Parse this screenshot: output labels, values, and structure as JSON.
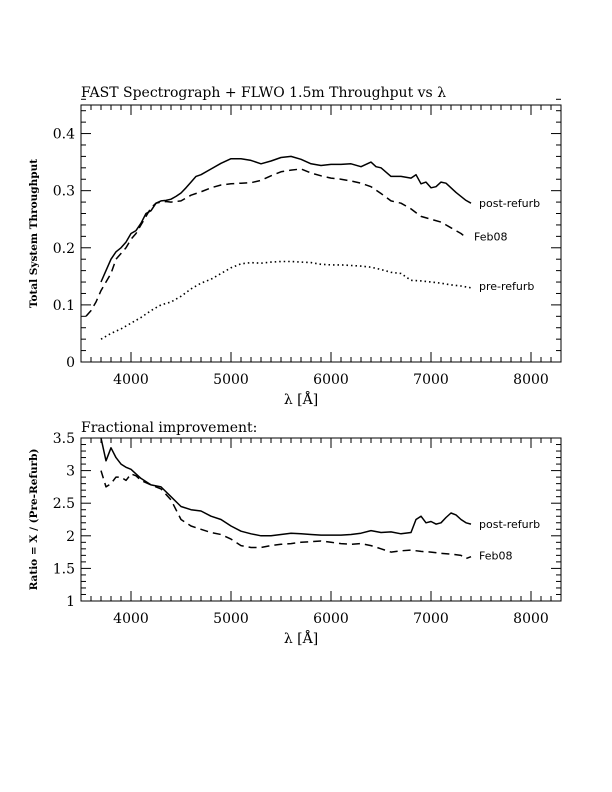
{
  "chart_data": [
    {
      "type": "line",
      "title": "FAST Spectrograph + FLWO 1.5m Throughput vs λ",
      "xlabel": "λ [Å]",
      "ylabel": "Total System Throughput",
      "xlim": [
        3500,
        8300
      ],
      "ylim": [
        0,
        0.45
      ],
      "xticks": [
        4000,
        5000,
        6000,
        7000,
        8000
      ],
      "yticks": [
        0,
        0.1,
        0.2,
        0.3,
        0.4
      ],
      "xtick_labels": [
        "4000",
        "5000",
        "6000",
        "7000",
        "8000"
      ],
      "ytick_labels": [
        "0",
        "0.1",
        "0.2",
        "0.3",
        "0.4"
      ],
      "grid": false,
      "series": [
        {
          "name": "post-refurb",
          "style": "solid",
          "x": [
            3700,
            3750,
            3800,
            3850,
            3900,
            3950,
            4000,
            4050,
            4100,
            4150,
            4200,
            4250,
            4300,
            4350,
            4400,
            4450,
            4500,
            4550,
            4600,
            4650,
            4700,
            4800,
            4900,
            5000,
            5100,
            5200,
            5300,
            5400,
            5500,
            5600,
            5700,
            5800,
            5900,
            6000,
            6100,
            6200,
            6300,
            6400,
            6450,
            6500,
            6600,
            6700,
            6800,
            6850,
            6900,
            6950,
            7000,
            7050,
            7100,
            7150,
            7200,
            7250,
            7300,
            7350,
            7400
          ],
          "y": [
            0.14,
            0.16,
            0.18,
            0.193,
            0.2,
            0.21,
            0.225,
            0.23,
            0.243,
            0.26,
            0.265,
            0.278,
            0.282,
            0.283,
            0.285,
            0.29,
            0.296,
            0.305,
            0.315,
            0.325,
            0.328,
            0.338,
            0.348,
            0.356,
            0.356,
            0.353,
            0.347,
            0.352,
            0.358,
            0.36,
            0.355,
            0.347,
            0.344,
            0.346,
            0.346,
            0.347,
            0.342,
            0.35,
            0.342,
            0.34,
            0.325,
            0.325,
            0.322,
            0.328,
            0.312,
            0.315,
            0.305,
            0.307,
            0.315,
            0.313,
            0.305,
            0.297,
            0.29,
            0.283,
            0.278
          ]
        },
        {
          "name": "Feb08",
          "style": "dashed",
          "x": [
            3550,
            3600,
            3650,
            3700,
            3750,
            3800,
            3850,
            3900,
            3950,
            4000,
            4050,
            4100,
            4150,
            4200,
            4250,
            4300,
            4350,
            4400,
            4500,
            4600,
            4700,
            4800,
            4900,
            5000,
            5100,
            5200,
            5300,
            5400,
            5500,
            5600,
            5700,
            5800,
            5900,
            6000,
            6100,
            6200,
            6300,
            6400,
            6500,
            6600,
            6700,
            6800,
            6900,
            7000,
            7100,
            7200,
            7300,
            7350
          ],
          "y": [
            0.08,
            0.09,
            0.105,
            0.125,
            0.14,
            0.155,
            0.18,
            0.19,
            0.2,
            0.215,
            0.225,
            0.24,
            0.255,
            0.27,
            0.278,
            0.28,
            0.281,
            0.28,
            0.282,
            0.292,
            0.298,
            0.305,
            0.31,
            0.312,
            0.313,
            0.314,
            0.318,
            0.326,
            0.333,
            0.336,
            0.338,
            0.331,
            0.326,
            0.322,
            0.32,
            0.317,
            0.313,
            0.307,
            0.295,
            0.282,
            0.278,
            0.268,
            0.255,
            0.25,
            0.245,
            0.235,
            0.225,
            0.218
          ]
        },
        {
          "name": "pre-refurb",
          "style": "dotted",
          "x": [
            3700,
            3800,
            3900,
            4000,
            4100,
            4200,
            4300,
            4400,
            4500,
            4600,
            4700,
            4800,
            4900,
            5000,
            5100,
            5200,
            5300,
            5400,
            5500,
            5600,
            5700,
            5800,
            5900,
            6000,
            6100,
            6200,
            6300,
            6400,
            6500,
            6600,
            6700,
            6800,
            6900,
            7000,
            7100,
            7200,
            7300,
            7400
          ],
          "y": [
            0.04,
            0.05,
            0.058,
            0.068,
            0.078,
            0.09,
            0.1,
            0.105,
            0.115,
            0.128,
            0.138,
            0.145,
            0.155,
            0.165,
            0.172,
            0.174,
            0.173,
            0.175,
            0.176,
            0.176,
            0.175,
            0.174,
            0.171,
            0.17,
            0.17,
            0.169,
            0.168,
            0.166,
            0.162,
            0.157,
            0.155,
            0.143,
            0.142,
            0.14,
            0.138,
            0.135,
            0.133,
            0.13
          ]
        }
      ]
    },
    {
      "type": "line",
      "title": "Fractional improvement:",
      "xlabel": "λ [Å]",
      "ylabel": "Ratio = X / (Pre-Refurb)",
      "xlim": [
        3500,
        8300
      ],
      "ylim": [
        1,
        3.5
      ],
      "xticks": [
        4000,
        5000,
        6000,
        7000,
        8000
      ],
      "yticks": [
        1,
        1.5,
        2,
        2.5,
        3,
        3.5
      ],
      "xtick_labels": [
        "4000",
        "5000",
        "6000",
        "7000",
        "8000"
      ],
      "ytick_labels": [
        "1",
        "1.5",
        "2",
        "2.5",
        "3",
        "3.5"
      ],
      "grid": false,
      "series": [
        {
          "name": "post-refurb",
          "style": "solid",
          "x": [
            3700,
            3750,
            3800,
            3850,
            3900,
            3950,
            4000,
            4050,
            4100,
            4200,
            4300,
            4400,
            4500,
            4600,
            4700,
            4800,
            4900,
            5000,
            5100,
            5200,
            5300,
            5400,
            5500,
            5600,
            5700,
            5800,
            5900,
            6000,
            6100,
            6200,
            6300,
            6400,
            6500,
            6600,
            6700,
            6800,
            6850,
            6900,
            6950,
            7000,
            7050,
            7100,
            7150,
            7200,
            7250,
            7300,
            7350,
            7400
          ],
          "y": [
            3.5,
            3.15,
            3.35,
            3.2,
            3.1,
            3.05,
            3.02,
            2.95,
            2.88,
            2.78,
            2.75,
            2.6,
            2.45,
            2.4,
            2.38,
            2.3,
            2.25,
            2.15,
            2.07,
            2.03,
            2.0,
            2.0,
            2.02,
            2.04,
            2.03,
            2.02,
            2.01,
            2.01,
            2.01,
            2.02,
            2.04,
            2.08,
            2.05,
            2.06,
            2.03,
            2.05,
            2.25,
            2.3,
            2.2,
            2.22,
            2.18,
            2.2,
            2.28,
            2.35,
            2.32,
            2.25,
            2.2,
            2.18
          ]
        },
        {
          "name": "Feb08",
          "style": "dashed",
          "x": [
            3700,
            3750,
            3800,
            3850,
            3900,
            3950,
            4000,
            4050,
            4100,
            4200,
            4300,
            4400,
            4500,
            4600,
            4700,
            4800,
            4900,
            5000,
            5100,
            5200,
            5300,
            5400,
            5500,
            5600,
            5700,
            5800,
            5900,
            6000,
            6100,
            6200,
            6300,
            6400,
            6500,
            6600,
            6700,
            6800,
            6900,
            7000,
            7100,
            7200,
            7300,
            7350,
            7400
          ],
          "y": [
            3.0,
            2.75,
            2.8,
            2.9,
            2.9,
            2.85,
            2.95,
            2.92,
            2.85,
            2.78,
            2.72,
            2.55,
            2.25,
            2.15,
            2.1,
            2.05,
            2.02,
            1.95,
            1.85,
            1.82,
            1.82,
            1.85,
            1.87,
            1.88,
            1.9,
            1.91,
            1.92,
            1.9,
            1.88,
            1.87,
            1.88,
            1.85,
            1.8,
            1.75,
            1.77,
            1.78,
            1.76,
            1.75,
            1.73,
            1.72,
            1.7,
            1.65,
            1.68
          ]
        }
      ]
    }
  ]
}
